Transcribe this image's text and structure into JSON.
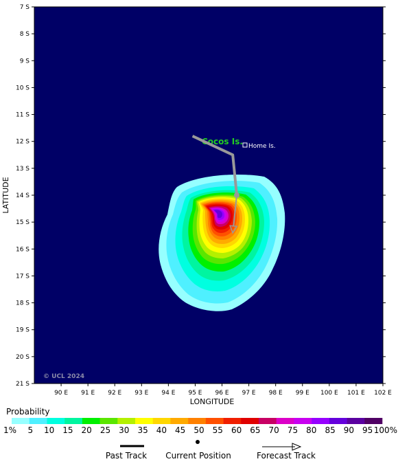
{
  "map": {
    "ocean_color": "#000066",
    "y_axis_title": "LATITUDE",
    "x_axis_title": "LONGITUDE",
    "lat_ticks": [
      "7 S",
      "8 S",
      "9 S",
      "10 S",
      "11 S",
      "12 S",
      "13 S",
      "14 S",
      "15 S",
      "16 S",
      "17 S",
      "18 S",
      "19 S",
      "20 S",
      "21 S"
    ],
    "lon_ticks": [
      "90 E",
      "91 E",
      "92 E",
      "93 E",
      "94 E",
      "95 E",
      "96 E",
      "97 E",
      "98 E",
      "99 E",
      "100 E",
      "101 E",
      "102 E"
    ],
    "lat_range": [
      7,
      21
    ],
    "lon_range": [
      89,
      102
    ],
    "places": {
      "cocos": "Cocos Is.",
      "home": "Home Is."
    },
    "copyright": "© UCL 2024"
  },
  "storm": {
    "past_track": [
      [
        94.9,
        11.8
      ],
      [
        96.4,
        12.5
      ],
      [
        96.55,
        14.0
      ]
    ],
    "current_position": [
      96.55,
      14.0
    ],
    "forecast_track": [
      [
        96.55,
        14.0
      ],
      [
        96.4,
        15.4
      ]
    ]
  },
  "probability": {
    "title": "Probability",
    "labels": [
      "1%",
      "5",
      "10",
      "15",
      "20",
      "25",
      "30",
      "35",
      "40",
      "45",
      "50",
      "55",
      "60",
      "65",
      "70",
      "75",
      "80",
      "85",
      "90",
      "95",
      "100%"
    ],
    "colors": [
      "#96ffff",
      "#4ff0ff",
      "#00ffe0",
      "#00f5a0",
      "#00f000",
      "#5ae600",
      "#b4f000",
      "#ffff00",
      "#ffd700",
      "#ffaa00",
      "#ff8000",
      "#ff5000",
      "#f01e00",
      "#e00000",
      "#c80064",
      "#dc00c8",
      "#c800f0",
      "#9600ff",
      "#6400dc",
      "#5a00a0",
      "#500064"
    ]
  },
  "legend": {
    "past_track": "Past Track",
    "current_position": "Current Position",
    "forecast_track": "Forecast Track"
  }
}
